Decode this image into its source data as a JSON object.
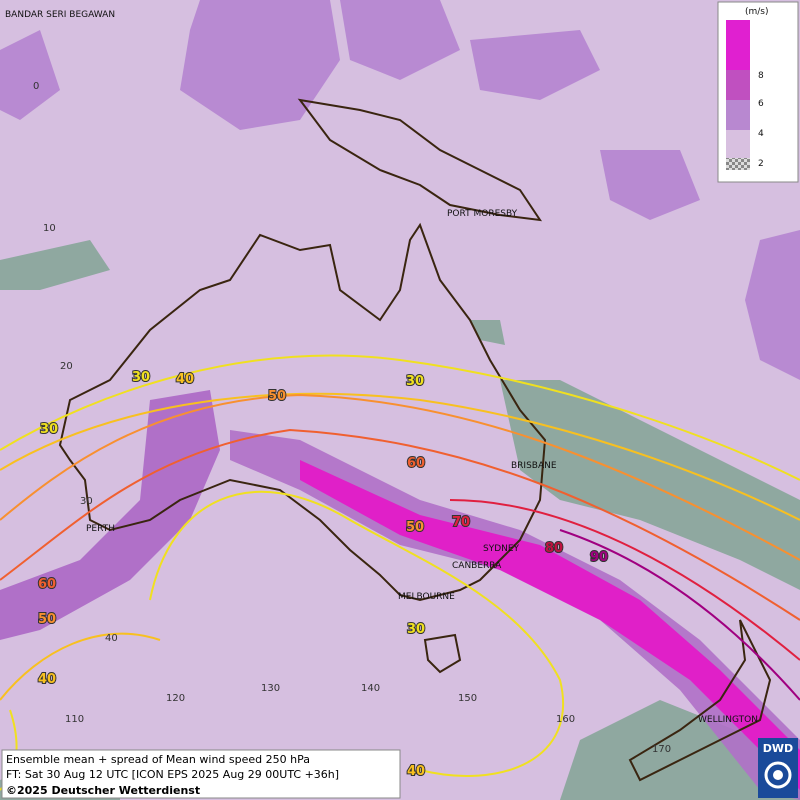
{
  "map": {
    "cities": [
      "BANDAR SERI BEGAWAN",
      "PORT MORESBY",
      "BRISBANE",
      "PERTH",
      "SYDNEY",
      "CANBERRA",
      "MELBOURNE",
      "WELLINGTON"
    ],
    "latitude_labels": [
      "0",
      "10",
      "20",
      "30",
      "40"
    ],
    "longitude_labels": [
      "110",
      "120",
      "130",
      "140",
      "150",
      "160",
      "170"
    ],
    "contour_labels": [
      {
        "value": 30,
        "color": "#f0e020"
      },
      {
        "value": 40,
        "color": "#f8c020"
      },
      {
        "value": 30,
        "color": "#f0e020"
      },
      {
        "value": 50,
        "color": "#f89030"
      },
      {
        "value": 30,
        "color": "#f0e020"
      },
      {
        "value": 60,
        "color": "#f06030"
      },
      {
        "value": 70,
        "color": "#e02040"
      },
      {
        "value": 50,
        "color": "#f89030"
      },
      {
        "value": 80,
        "color": "#c01040"
      },
      {
        "value": 90,
        "color": "#a00080"
      },
      {
        "value": 60,
        "color": "#f06030"
      },
      {
        "value": 50,
        "color": "#f89030"
      },
      {
        "value": 30,
        "color": "#f0e020"
      },
      {
        "value": 40,
        "color": "#f8c020"
      },
      {
        "value": 40,
        "color": "#f8c020"
      }
    ]
  },
  "legend": {
    "unit": "(m/s)",
    "ticks": [
      8,
      6,
      4,
      2
    ]
  },
  "footer": {
    "line1": "Ensemble mean + spread of Mean wind speed 250 hPa",
    "line2": "FT: Sat 30 Aug 12 UTC [ICON EPS 2025 Aug 29 00UTC +36h]",
    "line3": "©2025 Deutscher Wetterdienst"
  },
  "logo": "DWD"
}
